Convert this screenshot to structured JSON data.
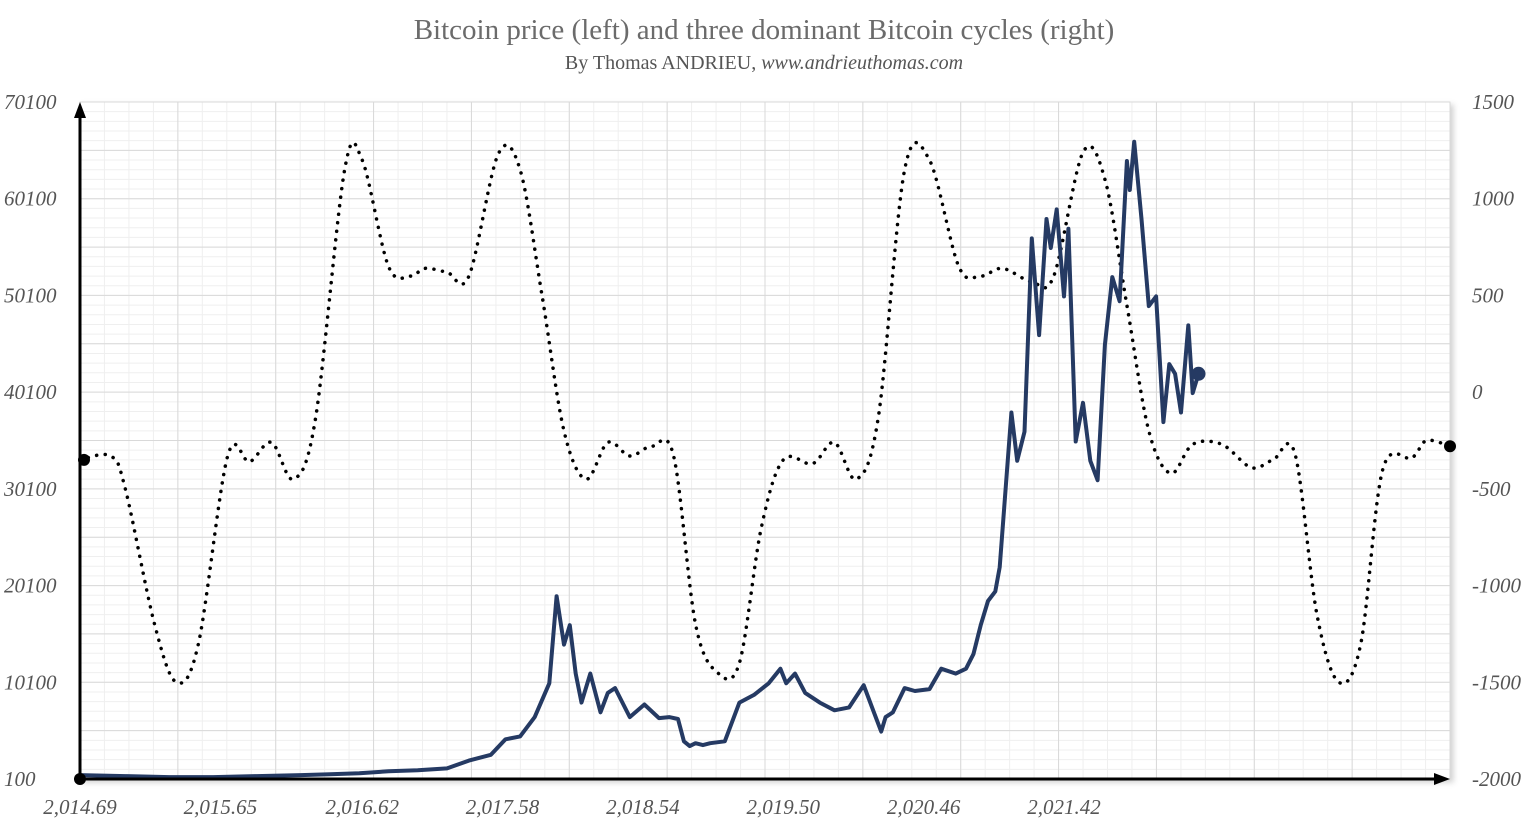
{
  "title": "Bitcoin price (left) and three dominant Bitcoin cycles (right)",
  "subtitle": {
    "prefix": "By Thomas ANDRIEU, ",
    "url": "www.andrieuthomas.com"
  },
  "colors": {
    "price_line": "#253a63",
    "cycle_line": "#000000",
    "grid": "#d9d9d9",
    "axis": "#000000"
  },
  "chart_data": {
    "type": "line",
    "x_ticks": [
      "2,014.69",
      "2,015.65",
      "2,016.62",
      "2,017.58",
      "2,018.54",
      "2,019.50",
      "2,020.46",
      "2,021.42"
    ],
    "x_tick_values": [
      2014.69,
      2015.65,
      2016.62,
      2017.58,
      2018.54,
      2019.5,
      2020.46,
      2021.42
    ],
    "xlim": [
      2014.69,
      2024.06
    ],
    "y_left": {
      "range": [
        100,
        70100
      ],
      "ticks": [
        "100",
        "10100",
        "20100",
        "30100",
        "40100",
        "50100",
        "60100",
        "70100"
      ]
    },
    "y_right": {
      "range": [
        -2000,
        1500
      ],
      "ticks": [
        "-2000",
        "-1500",
        "-1000",
        "-500",
        "0",
        "500",
        "1000",
        "1500"
      ]
    },
    "grid": true,
    "series": [
      {
        "axis": "left",
        "style": "solid",
        "x": [
          2014.69,
          2015.0,
          2015.3,
          2015.6,
          2015.9,
          2016.2,
          2016.4,
          2016.6,
          2016.8,
          2017.0,
          2017.2,
          2017.35,
          2017.5,
          2017.6,
          2017.7,
          2017.8,
          2017.9,
          2017.95,
          2018.0,
          2018.04,
          2018.08,
          2018.12,
          2018.18,
          2018.25,
          2018.3,
          2018.35,
          2018.45,
          2018.55,
          2018.65,
          2018.72,
          2018.78,
          2018.82,
          2018.86,
          2018.9,
          2018.95,
          2019.0,
          2019.1,
          2019.2,
          2019.3,
          2019.4,
          2019.48,
          2019.52,
          2019.58,
          2019.65,
          2019.75,
          2019.85,
          2019.95,
          2020.05,
          2020.12,
          2020.17,
          2020.2,
          2020.25,
          2020.33,
          2020.4,
          2020.5,
          2020.58,
          2020.68,
          2020.75,
          2020.8,
          2020.85,
          2020.9,
          2020.95,
          2020.98,
          2021.03,
          2021.06,
          2021.1,
          2021.15,
          2021.2,
          2021.25,
          2021.3,
          2021.33,
          2021.37,
          2021.42,
          2021.45,
          2021.5,
          2021.55,
          2021.6,
          2021.65,
          2021.7,
          2021.75,
          2021.8,
          2021.85,
          2021.87,
          2021.9,
          2021.95,
          2022.0,
          2022.05,
          2022.1,
          2022.14,
          2022.18,
          2022.22,
          2022.27,
          2022.3,
          2022.34
        ],
        "values": [
          500,
          400,
          300,
          300,
          400,
          500,
          600,
          700,
          900,
          1000,
          1200,
          2000,
          2600,
          4200,
          4500,
          6500,
          10000,
          19000,
          14000,
          16000,
          11000,
          8000,
          11000,
          7000,
          9000,
          9500,
          6500,
          7800,
          6400,
          6500,
          6300,
          4000,
          3500,
          3800,
          3600,
          3800,
          4000,
          8000,
          8800,
          10000,
          11500,
          10000,
          11000,
          9000,
          8000,
          7200,
          7500,
          9800,
          7000,
          5000,
          6500,
          7000,
          9500,
          9200,
          9400,
          11500,
          11000,
          11500,
          13000,
          16000,
          18500,
          19500,
          22000,
          32000,
          38000,
          33000,
          36000,
          56000,
          46000,
          58000,
          55000,
          59000,
          50000,
          57000,
          35000,
          39000,
          33000,
          31000,
          45000,
          52000,
          49500,
          64000,
          61000,
          66000,
          58000,
          49000,
          50000,
          37000,
          43000,
          42000,
          38000,
          47000,
          40000,
          42000
        ]
      },
      {
        "axis": "right",
        "style": "dotted",
        "x": [
          2014.69,
          2014.9,
          2015.0,
          2015.2,
          2015.35,
          2015.5,
          2015.7,
          2015.85,
          2016.0,
          2016.15,
          2016.3,
          2016.5,
          2016.62,
          2016.8,
          2016.95,
          2017.05,
          2017.2,
          2017.35,
          2017.55,
          2017.7,
          2017.85,
          2018.0,
          2018.15,
          2018.3,
          2018.45,
          2018.6,
          2018.75,
          2018.9,
          2019.05,
          2019.2,
          2019.35,
          2019.5,
          2019.7,
          2019.85,
          2020.0,
          2020.15,
          2020.33,
          2020.5,
          2020.7,
          2020.85,
          2021.0,
          2021.2,
          2021.35,
          2021.55,
          2021.7,
          2021.85,
          2022.0,
          2022.15,
          2022.3,
          2022.5,
          2022.7,
          2022.85,
          2023.0,
          2023.15,
          2023.3,
          2023.45,
          2023.6,
          2023.8,
          2023.9,
          2024.06
        ],
        "values": [
          -350,
          -330,
          -500,
          -1200,
          -1500,
          -1300,
          -330,
          -360,
          -260,
          -450,
          -140,
          1150,
          1200,
          650,
          600,
          640,
          620,
          600,
          1230,
          1150,
          500,
          -200,
          -450,
          -260,
          -330,
          -280,
          -330,
          -1200,
          -1450,
          -1400,
          -700,
          -350,
          -370,
          -260,
          -450,
          -130,
          1150,
          1200,
          650,
          600,
          640,
          570,
          600,
          1240,
          1100,
          450,
          -200,
          -420,
          -270,
          -270,
          -390,
          -350,
          -320,
          -1150,
          -1500,
          -1300,
          -400,
          -340,
          -250,
          -280
        ]
      }
    ]
  }
}
